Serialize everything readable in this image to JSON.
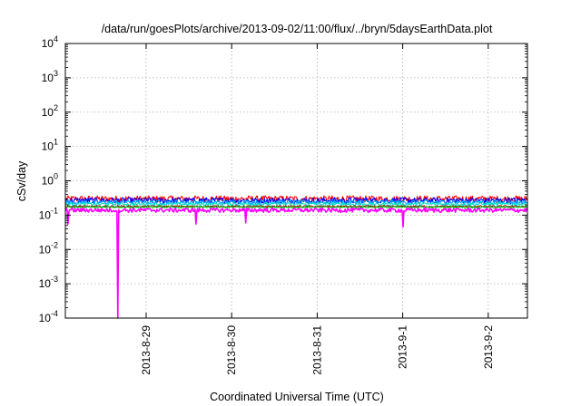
{
  "chart_data": {
    "type": "line",
    "title": "/data/run/goesPlots/archive/2013-09-02/11:00/flux/../bryn/5daysEarthData.plot",
    "xlabel": "Coordinated Universal Time (UTC)",
    "ylabel": "cSv/day",
    "yscale": "log",
    "ylim": [
      0.0001,
      10000
    ],
    "xlim": [
      "2013-08-28 01:20",
      "2013-09-02 11:00"
    ],
    "y_ticks": [
      {
        "base": "10",
        "exp": "-4"
      },
      {
        "base": "10",
        "exp": "-3"
      },
      {
        "base": "10",
        "exp": "-2"
      },
      {
        "base": "10",
        "exp": "-1"
      },
      {
        "base": "10",
        "exp": "0"
      },
      {
        "base": "10",
        "exp": "1"
      },
      {
        "base": "10",
        "exp": "2"
      },
      {
        "base": "10",
        "exp": "3"
      },
      {
        "base": "10",
        "exp": "4"
      }
    ],
    "x_ticks": [
      "2013-8-29",
      "2013-8-30",
      "2013-8-31",
      "2013-9-1",
      "2013-9-2"
    ],
    "grid": true,
    "legend": "none",
    "series": [
      {
        "color": "#ff0000",
        "base": 0.3,
        "spread": 0.22,
        "spikes": []
      },
      {
        "color": "#0000ff",
        "base": 0.27,
        "spread": 0.2,
        "spikes": []
      },
      {
        "color": "#00a0ff",
        "base": 0.24,
        "spread": 0.14,
        "spikes": []
      },
      {
        "color": "#00e0c0",
        "base": 0.21,
        "spread": 0.1,
        "spikes": []
      },
      {
        "color": "#8b1a1a",
        "base": 0.18,
        "spread": 0.06,
        "spikes": []
      },
      {
        "color": "#00c000",
        "base": 0.17,
        "spread": 0.05,
        "spikes": []
      },
      {
        "color": "#ff00ff",
        "base": 0.14,
        "spread": 0.14,
        "spikes": [
          {
            "x": "2013-08-28 02:00",
            "y": 0.055
          },
          {
            "x": "2013-08-28 16:00",
            "y": 0.0001
          },
          {
            "x": "2013-08-29 14:00",
            "y": 0.055
          },
          {
            "x": "2013-08-30 04:00",
            "y": 0.06
          },
          {
            "x": "2013-09-01 00:00",
            "y": 0.045
          }
        ]
      }
    ]
  }
}
